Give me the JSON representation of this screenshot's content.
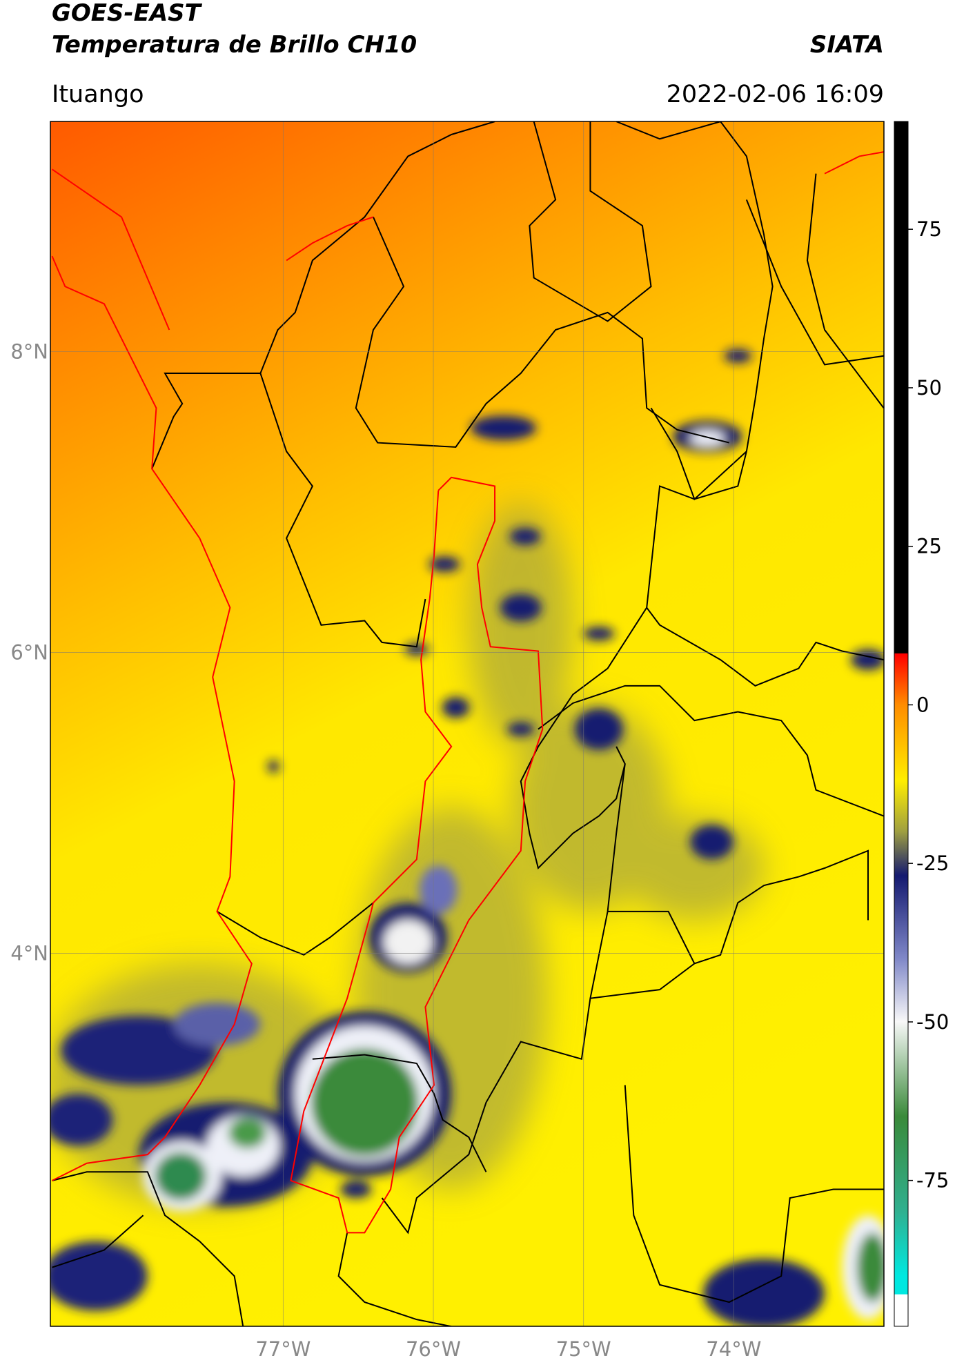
{
  "header": {
    "title": "GOES-EAST",
    "subtitle": "Temperatura de Brillo CH10",
    "source": "SIATA",
    "location": "Ituango",
    "datetime": "2022-02-06 16:09"
  },
  "map": {
    "xlim": [
      -78.55,
      -73.0
    ],
    "ylim": [
      1.52,
      9.53
    ],
    "xticks": [
      {
        "value": -77,
        "label": "77°W"
      },
      {
        "value": -76,
        "label": "76°W"
      },
      {
        "value": -75,
        "label": "75°W"
      },
      {
        "value": -74,
        "label": "74°W"
      }
    ],
    "yticks": [
      {
        "value": 8,
        "label": "8°N"
      },
      {
        "value": 6,
        "label": "6°N"
      },
      {
        "value": 4,
        "label": "4°N"
      }
    ],
    "grid": true
  },
  "colorbar": {
    "lim": [
      -98,
      92
    ],
    "ticks": [
      75,
      50,
      25,
      0,
      -25,
      -50,
      -75
    ]
  }
}
